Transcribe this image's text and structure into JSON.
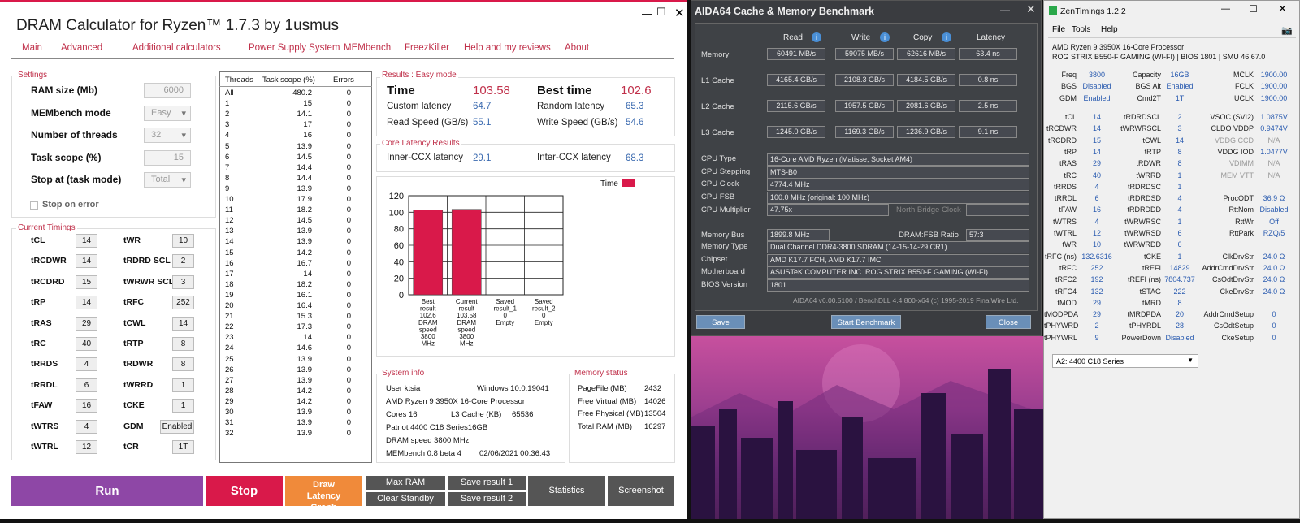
{
  "dram": {
    "title": "DRAM Calculator for Ryzen™ 1.7.3 by 1usmus",
    "nav": [
      "Main",
      "Advanced",
      "Additional calculators",
      "Power Supply System",
      "MEMbench",
      "FreezKiller",
      "Help and my reviews",
      "About"
    ],
    "settings_label": "Settings",
    "settings": [
      {
        "label": "RAM size (Mb)",
        "value": "6000"
      },
      {
        "label": "MEMbench mode",
        "value": "Easy"
      },
      {
        "label": "Number of threads",
        "value": "32"
      },
      {
        "label": "Task scope (%)",
        "value": "15"
      },
      {
        "label": "Stop at (task mode)",
        "value": "Total"
      }
    ],
    "stop_on_error": "Stop on error",
    "timings_label": "Current Timings",
    "timings_left": [
      [
        "tCL",
        "14"
      ],
      [
        "tRCDWR",
        "14"
      ],
      [
        "tRCDRD",
        "15"
      ],
      [
        "tRP",
        "14"
      ],
      [
        "tRAS",
        "29"
      ],
      [
        "tRC",
        "40"
      ],
      [
        "tRRDS",
        "4"
      ],
      [
        "tRRDL",
        "6"
      ],
      [
        "tFAW",
        "16"
      ],
      [
        "tWTRS",
        "4"
      ],
      [
        "tWTRL",
        "12"
      ]
    ],
    "timings_right": [
      [
        "tWR",
        "10"
      ],
      [
        "tRDRD SCL",
        "2"
      ],
      [
        "tWRWR SCL",
        "3"
      ],
      [
        "tRFC",
        "252"
      ],
      [
        "tCWL",
        "14"
      ],
      [
        "tRTP",
        "8"
      ],
      [
        "tRDWR",
        "8"
      ],
      [
        "tWRRD",
        "1"
      ],
      [
        "tCKE",
        "1"
      ],
      [
        "GDM",
        "Enabled"
      ],
      [
        "tCR",
        "1T"
      ]
    ],
    "threads_headers": [
      "Threads",
      "Task scope (%)",
      "Errors"
    ],
    "threads": [
      [
        "All",
        "480.2",
        "0"
      ],
      [
        "1",
        "15",
        "0"
      ],
      [
        "2",
        "14.1",
        "0"
      ],
      [
        "3",
        "17",
        "0"
      ],
      [
        "4",
        "16",
        "0"
      ],
      [
        "5",
        "13.9",
        "0"
      ],
      [
        "6",
        "14.5",
        "0"
      ],
      [
        "7",
        "14.4",
        "0"
      ],
      [
        "8",
        "14.4",
        "0"
      ],
      [
        "9",
        "13.9",
        "0"
      ],
      [
        "10",
        "17.9",
        "0"
      ],
      [
        "11",
        "18.2",
        "0"
      ],
      [
        "12",
        "14.5",
        "0"
      ],
      [
        "13",
        "13.9",
        "0"
      ],
      [
        "14",
        "13.9",
        "0"
      ],
      [
        "15",
        "14.2",
        "0"
      ],
      [
        "16",
        "16.7",
        "0"
      ],
      [
        "17",
        "14",
        "0"
      ],
      [
        "18",
        "18.2",
        "0"
      ],
      [
        "19",
        "16.1",
        "0"
      ],
      [
        "20",
        "16.4",
        "0"
      ],
      [
        "21",
        "15.3",
        "0"
      ],
      [
        "22",
        "17.3",
        "0"
      ],
      [
        "23",
        "14",
        "0"
      ],
      [
        "24",
        "14.6",
        "0"
      ],
      [
        "25",
        "13.9",
        "0"
      ],
      [
        "26",
        "13.9",
        "0"
      ],
      [
        "27",
        "13.9",
        "0"
      ],
      [
        "28",
        "14.2",
        "0"
      ],
      [
        "29",
        "14.2",
        "0"
      ],
      [
        "30",
        "13.9",
        "0"
      ],
      [
        "31",
        "13.9",
        "0"
      ],
      [
        "32",
        "13.9",
        "0"
      ]
    ],
    "results_label": "Results : Easy mode",
    "time_label": "Time",
    "time_value": "103.58",
    "best_label": "Best time",
    "best_value": "102.6",
    "custom_latency_label": "Custom latency",
    "custom_latency": "64.7",
    "random_latency_label": "Random latency",
    "random_latency": "65.3",
    "read_label": "Read Speed (GB/s)",
    "read": "55.1",
    "write_label": "Write Speed (GB/s)",
    "write": "54.6",
    "ccx_label": "Core Latency Results",
    "inner_label": "Inner-CCX latency",
    "inner": "29.1",
    "inter_label": "Inter-CCX latency",
    "inter": "68.3",
    "sysinfo_label": "System info",
    "sysinfo": [
      "User ktsia",
      "AMD Ryzen 9 3950X 16-Core Processor",
      "Cores 16",
      "Patriot 4400 C18 Series16GB",
      "DRAM speed 3800 MHz",
      "MEMbench 0.8 beta 4"
    ],
    "sys_windows": "Windows 10.0.19041",
    "sys_l3_label": "L3 Cache (KB)",
    "sys_l3": "65536",
    "sys_date": "02/06/2021 00:36:43",
    "memstatus_label": "Memory status",
    "memstatus": [
      [
        "PageFile (MB)",
        "2432"
      ],
      [
        "Free Virtual (MB)",
        "14026"
      ],
      [
        "Free Physical (MB)",
        "13504"
      ],
      [
        "Total RAM (MB)",
        "16297"
      ]
    ],
    "buttons": {
      "run": "Run",
      "stop": "Stop",
      "draw": "Draw Latency Graph",
      "maxram": "Max RAM",
      "clear": "Clear Standby",
      "save1": "Save result 1",
      "save2": "Save result 2",
      "stats": "Statistics",
      "screenshot": "Screenshot"
    }
  },
  "chart_data": {
    "type": "bar",
    "categories": [
      "Best result 102.6 DRAM speed 3800 MHz",
      "Current result 103.58 DRAM speed 3800 MHz",
      "Saved result_1 0 Empty",
      "Saved result_2 0 Empty"
    ],
    "category_lines": [
      [
        "Best",
        "result",
        "102.6",
        "DRAM",
        "speed",
        "3800",
        "MHz"
      ],
      [
        "Current",
        "result",
        "103.58",
        "DRAM",
        "speed",
        "3800",
        "MHz"
      ],
      [
        "Saved",
        "result_1",
        "0",
        "Empty"
      ],
      [
        "Saved",
        "result_2",
        "0",
        "Empty"
      ]
    ],
    "series": [
      {
        "name": "Time",
        "values": [
          102.6,
          103.58,
          0,
          0
        ]
      }
    ],
    "ylim": [
      0,
      120
    ],
    "yticks": [
      "0",
      "20",
      "40",
      "60",
      "80",
      "100",
      "120"
    ],
    "color": "#d9194a",
    "legend": "top-right",
    "grid": true
  },
  "aida": {
    "title": "AIDA64 Cache & Memory Benchmark",
    "headers": [
      "Read",
      "Write",
      "Copy",
      "Latency"
    ],
    "rows": [
      {
        "label": "Memory",
        "vals": [
          "60491 MB/s",
          "59075 MB/s",
          "62616 MB/s",
          "63.4 ns"
        ]
      },
      {
        "label": "L1 Cache",
        "vals": [
          "4165.4 GB/s",
          "2108.3 GB/s",
          "4184.5 GB/s",
          "0.8 ns"
        ]
      },
      {
        "label": "L2 Cache",
        "vals": [
          "2115.6 GB/s",
          "1957.5 GB/s",
          "2081.6 GB/s",
          "2.5 ns"
        ]
      },
      {
        "label": "L3 Cache",
        "vals": [
          "1245.0 GB/s",
          "1169.3 GB/s",
          "1236.9 GB/s",
          "9.1 ns"
        ]
      }
    ],
    "cpu": [
      [
        "CPU Type",
        "16-Core AMD Ryzen  (Matisse, Socket AM4)"
      ],
      [
        "CPU Stepping",
        "MTS-B0"
      ],
      [
        "CPU Clock",
        "4774.4 MHz"
      ],
      [
        "CPU FSB",
        "100.0 MHz  (original: 100 MHz)"
      ]
    ],
    "multiplier_label": "CPU Multiplier",
    "multiplier": "47.75x",
    "nbclock_label": "North Bridge Clock",
    "membus_label": "Memory Bus",
    "membus": "1899.8 MHz",
    "ratio_label": "DRAM:FSB Ratio",
    "ratio": "57:3",
    "sys": [
      [
        "Memory Type",
        "Dual Channel DDR4-3800 SDRAM  (14-15-14-29 CR1)"
      ],
      [
        "Chipset",
        "AMD K17.7 FCH, AMD K17.7 IMC"
      ],
      [
        "Motherboard",
        "ASUSTeK COMPUTER INC. ROG STRIX B550-F GAMING (WI-FI)"
      ],
      [
        "BIOS Version",
        "1801"
      ]
    ],
    "footer": "AIDA64 v6.00.5100 / BenchDLL 4.4.800-x64  (c) 1995-2019 FinalWire Ltd.",
    "save": "Save",
    "start": "Start Benchmark",
    "close": "Close"
  },
  "zen": {
    "title": "ZenTimings 1.2.2",
    "menu": [
      "File",
      "Tools",
      "Help"
    ],
    "cpu": "AMD Ryzen 9 3950X 16-Core Processor",
    "board": "ROG STRIX B550-F GAMING (WI-FI) | BIOS 1801 | SMU 46.67.0",
    "top": [
      [
        "Freq",
        "3800",
        "Capacity",
        "16GB",
        "MCLK",
        "1900.00"
      ],
      [
        "BGS",
        "Disabled",
        "BGS Alt",
        "Enabled",
        "FCLK",
        "1900.00"
      ],
      [
        "GDM",
        "Enabled",
        "Cmd2T",
        "1T",
        "UCLK",
        "1900.00"
      ]
    ],
    "rows": [
      [
        "tCL",
        "14",
        "tRDRDSCL",
        "2",
        "VSOC (SVI2)",
        "1.0875V"
      ],
      [
        "tRCDWR",
        "14",
        "tWRWRSCL",
        "3",
        "CLDO VDDP",
        "0.9474V"
      ],
      [
        "tRCDRD",
        "15",
        "tCWL",
        "14",
        "VDDG CCD",
        "N/A"
      ],
      [
        "tRP",
        "14",
        "tRTP",
        "8",
        "VDDG IOD",
        "1.0477V"
      ],
      [
        "tRAS",
        "29",
        "tRDWR",
        "8",
        "VDIMM",
        "N/A"
      ],
      [
        "tRC",
        "40",
        "tWRRD",
        "1",
        "MEM VTT",
        "N/A"
      ],
      [
        "tRRDS",
        "4",
        "tRDRDSC",
        "1",
        "",
        ""
      ],
      [
        "tRRDL",
        "6",
        "tRDRDSD",
        "4",
        "ProcODT",
        "36.9 Ω"
      ],
      [
        "tFAW",
        "16",
        "tRDRDDD",
        "4",
        "RttNom",
        "Disabled"
      ],
      [
        "tWTRS",
        "4",
        "tWRWRSC",
        "1",
        "RttWr",
        "Off"
      ],
      [
        "tWTRL",
        "12",
        "tWRWRSD",
        "6",
        "RttPark",
        "RZQ/5"
      ],
      [
        "tWR",
        "10",
        "tWRWRDD",
        "6",
        "",
        ""
      ],
      [
        "tRFC (ns)",
        "132.6316",
        "tCKE",
        "1",
        "ClkDrvStr",
        "24.0 Ω"
      ],
      [
        "tRFC",
        "252",
        "tREFI",
        "14829",
        "AddrCmdDrvStr",
        "24.0 Ω"
      ],
      [
        "tRFC2",
        "192",
        "tREFI (ns)",
        "7804.737",
        "CsOdtDrvStr",
        "24.0 Ω"
      ],
      [
        "tRFC4",
        "132",
        "tSTAG",
        "222",
        "CkeDrvStr",
        "24.0 Ω"
      ],
      [
        "tMOD",
        "29",
        "tMRD",
        "8",
        "",
        ""
      ],
      [
        "tMODPDA",
        "29",
        "tMRDPDA",
        "20",
        "AddrCmdSetup",
        "0"
      ],
      [
        "tPHYWRD",
        "2",
        "tPHYRDL",
        "28",
        "CsOdtSetup",
        "0"
      ],
      [
        "tPHYWRL",
        "9",
        "PowerDown",
        "Disabled",
        "CkeSetup",
        "0"
      ]
    ],
    "profile": "A2: 4400 C18 Series"
  }
}
